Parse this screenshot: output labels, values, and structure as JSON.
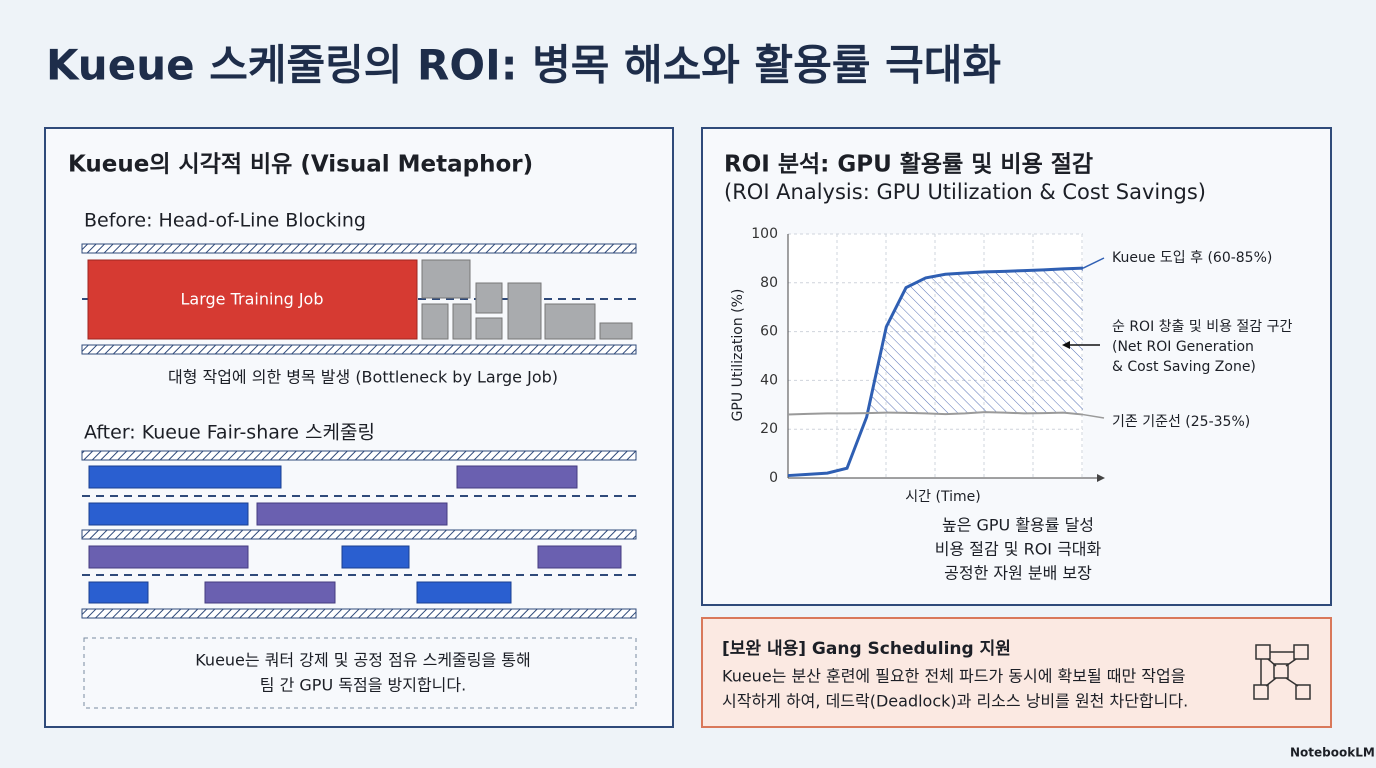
{
  "title": "Kueue 스케줄링의 ROI: 병목 해소와 활용률 극대화",
  "left_panel": {
    "title": "Kueue의 시각적 비유 (Visual Metaphor)",
    "before": {
      "label": "Before: Head-of-Line Blocking",
      "job_label": "Large Training Job",
      "caption": "대형 작업에 의한 병목 발생 (Bottleneck by Large Job)"
    },
    "after": {
      "label": "After: Kueue Fair-share 스케줄링"
    },
    "note": [
      "Kueue는 쿼터 강제 및 공정 점유 스케줄링을 통해",
      "팀 간 GPU 독점을 방지합니다."
    ]
  },
  "chart_data": {
    "type": "line",
    "title": "ROI 분석: GPU 활용률 및 비용 절감",
    "subtitle": "(ROI Analysis: GPU Utilization & Cost Savings)",
    "categories": [
      null,
      null,
      null,
      null,
      null,
      null,
      null,
      null,
      null,
      null,
      null,
      null,
      null,
      null,
      null,
      null
    ],
    "series": [
      {
        "name": "Kueue 도입 후 (60-85%)",
        "color": "#2f5fb3",
        "values": [
          1,
          1.5,
          2,
          4,
          25,
          62,
          78,
          82,
          83.5,
          84,
          84.5,
          84.7,
          85,
          85.3,
          85.7,
          86
        ]
      },
      {
        "name": "기존 기준선 (25-35%)",
        "color": "#9a9a9a",
        "values": [
          26,
          26.3,
          26.5,
          26.5,
          26.6,
          26.8,
          26.7,
          26.5,
          26.2,
          26.5,
          27,
          26.8,
          26.5,
          26.6,
          26.8,
          26
        ]
      }
    ],
    "ylim": [
      0,
      100
    ],
    "yticks": [
      0,
      20,
      40,
      60,
      80,
      100
    ],
    "ylabel": "GPU Utilization (%)",
    "xlabel": "시간 (Time)",
    "grid": true,
    "annotations": [
      "순 ROI 창출 및 비용 절감 구간",
      "(Net ROI Generation",
      "& Cost Saving Zone)"
    ],
    "notes": [
      "높은 GPU 활용률 달성",
      "비용 절감 및 ROI 극대화",
      "공정한 자원 분배 보장"
    ]
  },
  "supplement": {
    "title": "[보완 내용] Gang Scheduling 지원",
    "body": [
      "Kueue는 분산 훈련에 필요한 전체 파드가 동시에 확보될 때만 작업을",
      "시작하게 하여, 데드락(Deadlock)과 리소스 낭비를 원천 차단합니다."
    ]
  },
  "brand": "NotebookLM"
}
